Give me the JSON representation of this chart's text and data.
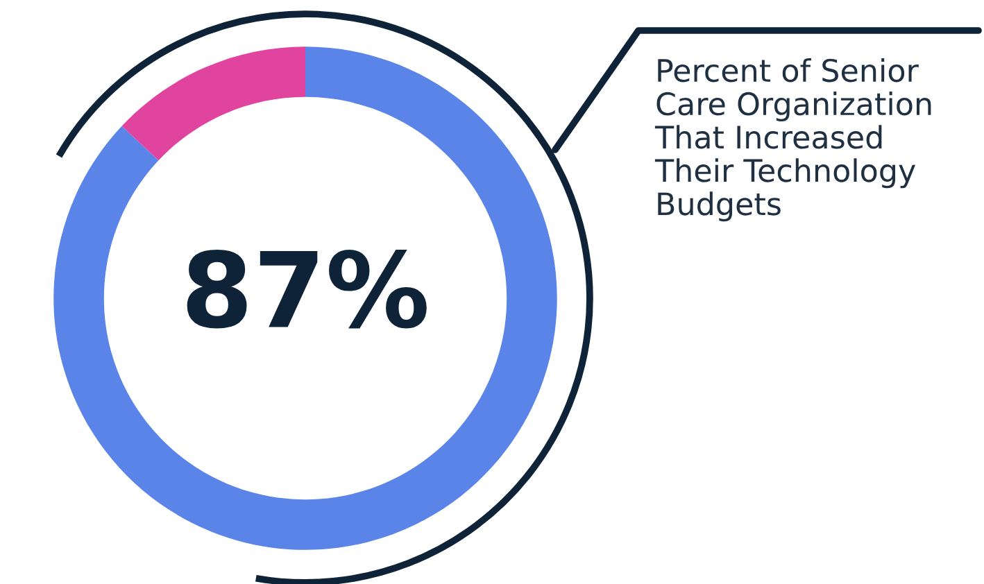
{
  "chart_data": {
    "type": "donut",
    "title": "Percent of Senior\nCare Organization\nThat Increased\nTheir Technology\nBudgets",
    "categories": [
      null,
      null
    ],
    "values": [
      87,
      13
    ],
    "colors": [
      "#5b84e8",
      "#e0449e"
    ],
    "value_labels": [
      "87%",
      null
    ],
    "legend": false
  }
}
